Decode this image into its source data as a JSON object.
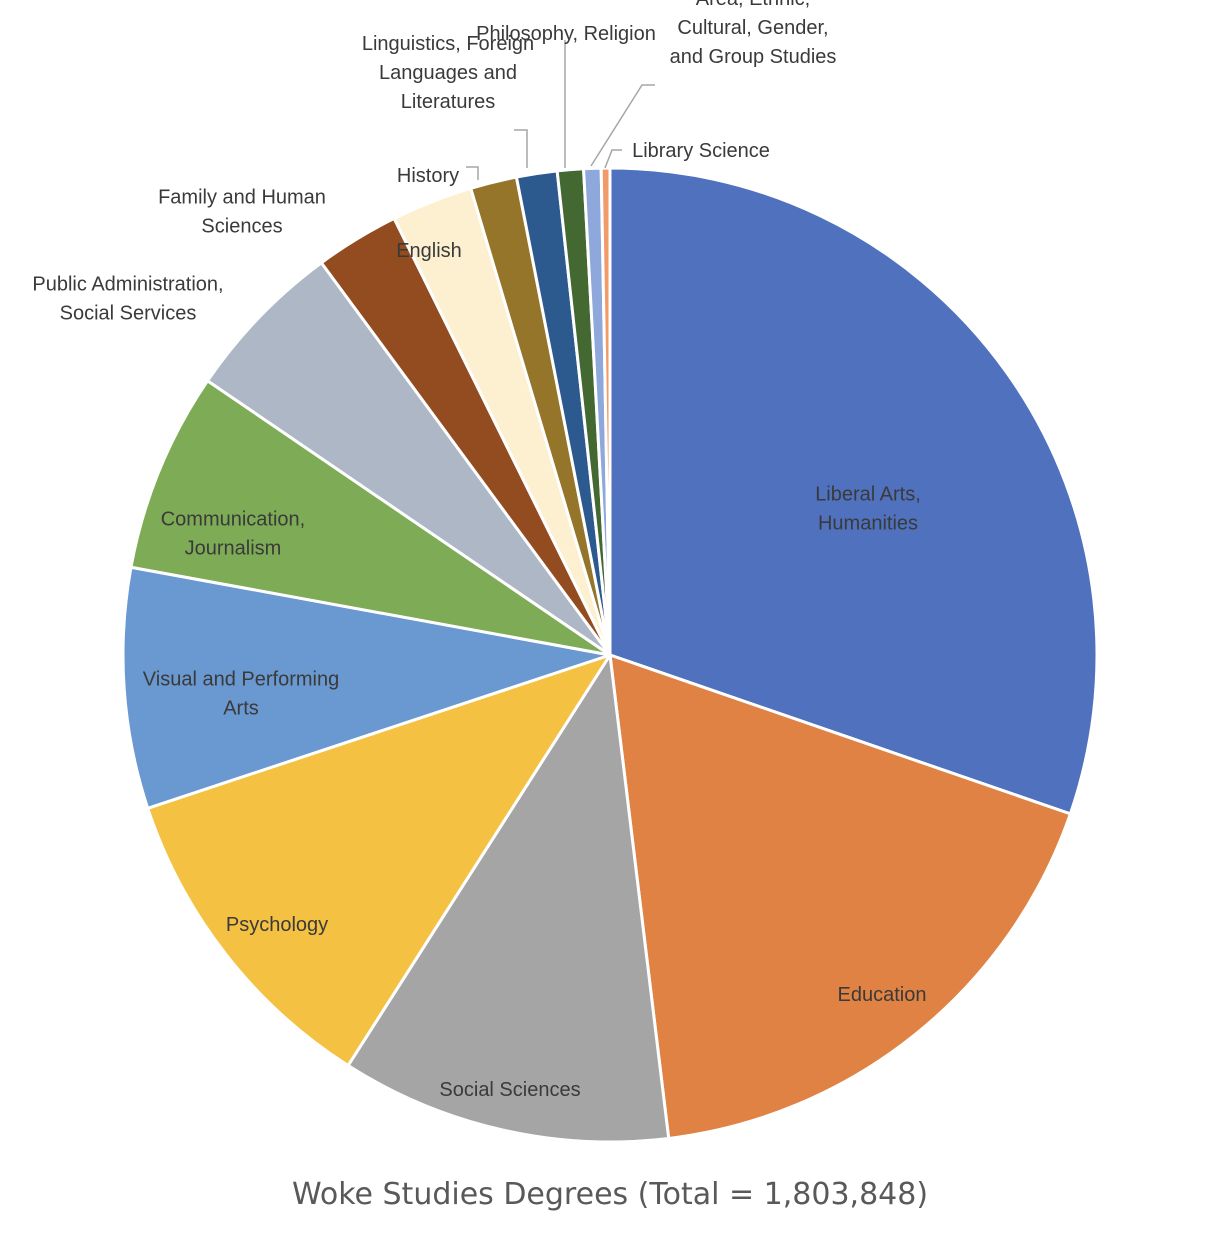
{
  "chart_data": {
    "type": "pie",
    "title": "Woke Studies Degrees (Total = 1,803,848)",
    "slices": [
      {
        "label": "Liberal Arts, Humanities",
        "lines": [
          "Liberal Arts,",
          "Humanities"
        ],
        "value": 31.5,
        "color": "#4f71be"
      },
      {
        "label": "Education",
        "lines": [
          "Education"
        ],
        "value": 18.5,
        "color": "#df8244"
      },
      {
        "label": "Social Sciences",
        "lines": [
          "Social Sciences"
        ],
        "value": 11.4,
        "color": "#a5a5a5"
      },
      {
        "label": "Psychology",
        "lines": [
          "Psychology"
        ],
        "value": 11.3,
        "color": "#f4c142"
      },
      {
        "label": "Visual and Performing Arts",
        "lines": [
          "Visual and Performing",
          "Arts"
        ],
        "value": 8.3,
        "color": "#6a98d0"
      },
      {
        "label": "Communication, Journalism",
        "lines": [
          "Communication,",
          "Journalism"
        ],
        "value": 6.9,
        "color": "#7eab55"
      },
      {
        "label": "Public Administration, Social Services",
        "lines": [
          "Public Administration,",
          "Social Services"
        ],
        "value": 5.6,
        "color": "#adb7c5"
      },
      {
        "label": "Family and Human Sciences",
        "lines": [
          "Family and Human",
          "Sciences"
        ],
        "value": 2.9,
        "color": "#934b20"
      },
      {
        "label": "English",
        "lines": [
          "English"
        ],
        "value": 2.8,
        "color": "#fdf0d0"
      },
      {
        "label": "History",
        "lines": [
          "History"
        ],
        "value": 1.6,
        "color": "#94752a"
      },
      {
        "label": "Linguistics, Foreign Languages and Literatures",
        "lines": [
          "Linguistics, Foreign",
          "Languages and",
          "Literatures"
        ],
        "value": 1.4,
        "color": "#2c5a8f"
      },
      {
        "label": "Philosophy, Religion",
        "lines": [
          "Philosophy, Religion"
        ],
        "value": 0.9,
        "color": "#446832"
      },
      {
        "label": "Area, Ethnic, Cultural, Gender, and Group Studies",
        "lines": [
          "Area, Ethnic,",
          "Cultural, Gender,",
          "and Group Studies"
        ],
        "value": 0.6,
        "color": "#8fa8dc"
      },
      {
        "label": "Library Science",
        "lines": [
          "Library Science"
        ],
        "value": 0.3,
        "color": "#f29b6a"
      }
    ]
  }
}
